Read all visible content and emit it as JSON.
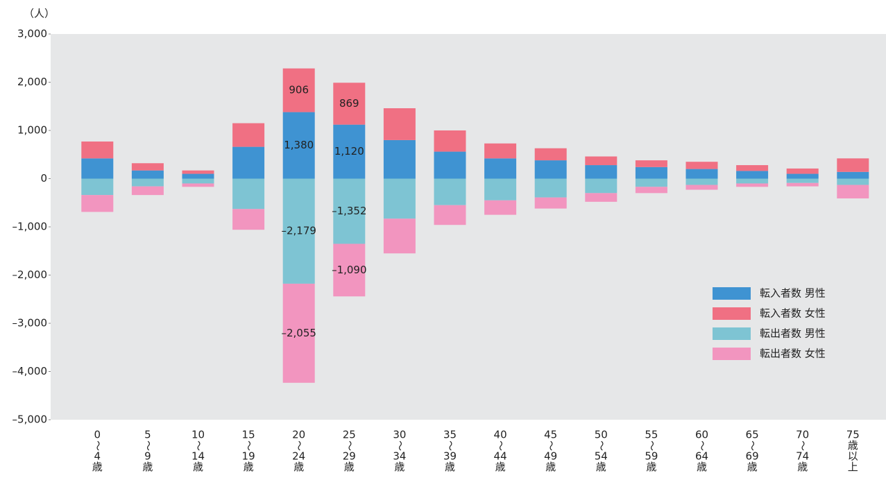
{
  "chart_data": {
    "type": "stacked_bar",
    "y_label": "（人）",
    "categories": [
      [
        "0",
        "〜",
        "4",
        "歳"
      ],
      [
        "5",
        "〜",
        "9",
        "歳"
      ],
      [
        "10",
        "〜",
        "14",
        "歳"
      ],
      [
        "15",
        "〜",
        "19",
        "歳"
      ],
      [
        "20",
        "〜",
        "24",
        "歳"
      ],
      [
        "25",
        "〜",
        "29",
        "歳"
      ],
      [
        "30",
        "〜",
        "34",
        "歳"
      ],
      [
        "35",
        "〜",
        "39",
        "歳"
      ],
      [
        "40",
        "〜",
        "44",
        "歳"
      ],
      [
        "45",
        "〜",
        "49",
        "歳"
      ],
      [
        "50",
        "〜",
        "54",
        "歳"
      ],
      [
        "55",
        "〜",
        "59",
        "歳"
      ],
      [
        "60",
        "〜",
        "64",
        "歳"
      ],
      [
        "65",
        "〜",
        "69",
        "歳"
      ],
      [
        "70",
        "〜",
        "74",
        "歳"
      ],
      [
        "75",
        "歳",
        "以",
        "上"
      ]
    ],
    "series": [
      {
        "name": "転入者数 男性",
        "color": "#3f93d2",
        "values": [
          420,
          170,
          100,
          660,
          1380,
          1120,
          800,
          560,
          420,
          380,
          280,
          240,
          200,
          160,
          100,
          140
        ],
        "value_labels": [
          null,
          null,
          null,
          null,
          "1,380",
          "1,120",
          null,
          null,
          null,
          null,
          null,
          null,
          null,
          null,
          null,
          null
        ]
      },
      {
        "name": "転入者数 女性",
        "color": "#f07083",
        "values": [
          350,
          150,
          70,
          490,
          906,
          869,
          660,
          440,
          310,
          250,
          180,
          140,
          150,
          120,
          110,
          280
        ]
      },
      {
        "name": "転出者数 男性",
        "color": "#7ec4d3",
        "values": [
          -340,
          -160,
          -100,
          -630,
          -2179,
          -1352,
          -830,
          -550,
          -450,
          -390,
          -300,
          -170,
          -130,
          -100,
          -90,
          -130
        ],
        "value_labels": [
          null,
          null,
          null,
          null,
          "–2,179",
          "–1,352",
          null,
          null,
          null,
          null,
          null,
          null,
          null,
          null,
          null,
          null
        ]
      },
      {
        "name": "転出者数 女性",
        "color": "#f295bf",
        "values": [
          -350,
          -180,
          -70,
          -430,
          -2055,
          -1090,
          -720,
          -410,
          -300,
          -230,
          -180,
          -130,
          -100,
          -70,
          -70,
          -280
        ],
        "value_labels": [
          null,
          null,
          null,
          null,
          "–2,055",
          "–1,090",
          null,
          null,
          null,
          null,
          null,
          null,
          null,
          null,
          null,
          null
        ]
      }
    ],
    "label_series": [
      1
    ],
    "ylim": [
      -5000,
      3000
    ],
    "yticks": [
      {
        "value": 3000,
        "label": "3,000"
      },
      {
        "value": 2000,
        "label": "2,000"
      },
      {
        "value": 1000,
        "label": "1,000"
      },
      0,
      {
        "value": -1000,
        "label": "–1,000"
      },
      {
        "value": -2000,
        "label": "–2,000"
      },
      {
        "value": -3000,
        "label": "–3,000"
      },
      {
        "value": -4000,
        "label": "–4,000"
      },
      {
        "value": -5000,
        "label": "–5,000"
      }
    ],
    "legend": "lower-right"
  }
}
